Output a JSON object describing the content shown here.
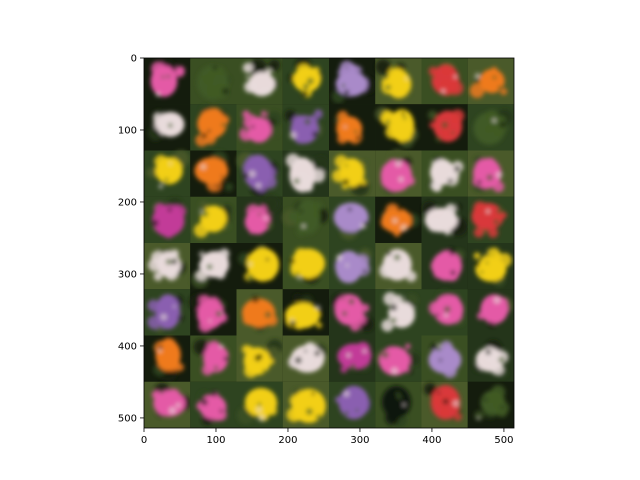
{
  "image": {
    "type": "image-grid",
    "content": "8x8 mosaic of generated flower images",
    "grid": {
      "rows": 8,
      "cols": 8
    },
    "x_ticks": [
      "0",
      "100",
      "200",
      "300",
      "400",
      "500"
    ],
    "y_ticks": [
      "0",
      "100",
      "200",
      "300",
      "400",
      "500"
    ],
    "x_tick_values": [
      0,
      100,
      200,
      300,
      400,
      500
    ],
    "y_tick_values": [
      0,
      100,
      200,
      300,
      400,
      500
    ],
    "extent": [
      0,
      514
    ],
    "palette": {
      "pink": "#e45aa6",
      "magenta": "#c23b98",
      "yellow": "#f2cf16",
      "orange": "#ef7a1d",
      "red": "#d9393a",
      "purple": "#8a5fb0",
      "lavender": "#a98ac9",
      "white": "#e8dada",
      "green": "#3f5a25",
      "dark": "#0f140a"
    },
    "tiles": [
      [
        "pink",
        "green",
        "white",
        "yellow",
        "lavender",
        "yellow",
        "red",
        "orange"
      ],
      [
        "white",
        "orange",
        "pink",
        "purple",
        "orange",
        "yellow",
        "red",
        "green"
      ],
      [
        "yellow",
        "orange",
        "purple",
        "white",
        "yellow",
        "pink",
        "white",
        "pink"
      ],
      [
        "magenta",
        "yellow",
        "pink",
        "green",
        "lavender",
        "orange",
        "white",
        "red"
      ],
      [
        "white",
        "white",
        "yellow",
        "yellow",
        "lavender",
        "white",
        "pink",
        "yellow"
      ],
      [
        "purple",
        "pink",
        "orange",
        "yellow",
        "pink",
        "white",
        "pink",
        "pink"
      ],
      [
        "orange",
        "pink",
        "yellow",
        "white",
        "magenta",
        "pink",
        "lavender",
        "white"
      ],
      [
        "pink",
        "pink",
        "yellow",
        "yellow",
        "purple",
        "dark",
        "red",
        "green"
      ]
    ]
  }
}
